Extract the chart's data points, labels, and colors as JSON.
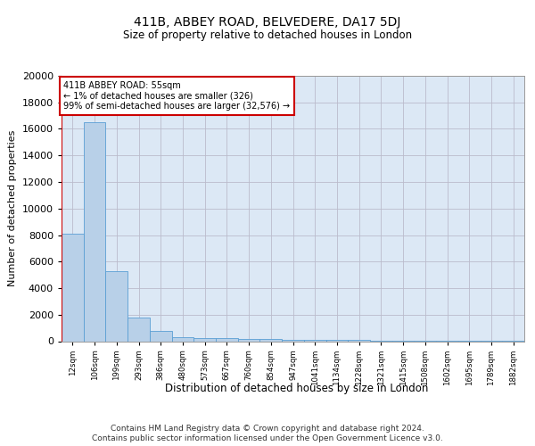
{
  "title1": "411B, ABBEY ROAD, BELVEDERE, DA17 5DJ",
  "title2": "Size of property relative to detached houses in London",
  "xlabel": "Distribution of detached houses by size in London",
  "ylabel": "Number of detached properties",
  "bar_labels": [
    "12sqm",
    "106sqm",
    "199sqm",
    "293sqm",
    "386sqm",
    "480sqm",
    "573sqm",
    "667sqm",
    "760sqm",
    "854sqm",
    "947sqm",
    "1041sqm",
    "1134sqm",
    "1228sqm",
    "1321sqm",
    "1415sqm",
    "1508sqm",
    "1602sqm",
    "1695sqm",
    "1789sqm",
    "1882sqm"
  ],
  "bar_heights": [
    8100,
    16500,
    5300,
    1750,
    750,
    330,
    250,
    220,
    200,
    150,
    120,
    100,
    85,
    70,
    60,
    50,
    45,
    40,
    35,
    30,
    20
  ],
  "bar_color": "#b8d0e8",
  "bar_edge_color": "#5a9fd4",
  "bg_color": "#dce8f5",
  "grid_color": "#bbbbcc",
  "vline_color": "#cc0000",
  "vline_bar_index": 0,
  "annotation_text": "411B ABBEY ROAD: 55sqm\n← 1% of detached houses are smaller (326)\n99% of semi-detached houses are larger (32,576) →",
  "annotation_box_color": "#ffffff",
  "annotation_box_edge": "#cc0000",
  "ylim": [
    0,
    20000
  ],
  "yticks": [
    0,
    2000,
    4000,
    6000,
    8000,
    10000,
    12000,
    14000,
    16000,
    18000,
    20000
  ],
  "footnote1": "Contains HM Land Registry data © Crown copyright and database right 2024.",
  "footnote2": "Contains public sector information licensed under the Open Government Licence v3.0."
}
